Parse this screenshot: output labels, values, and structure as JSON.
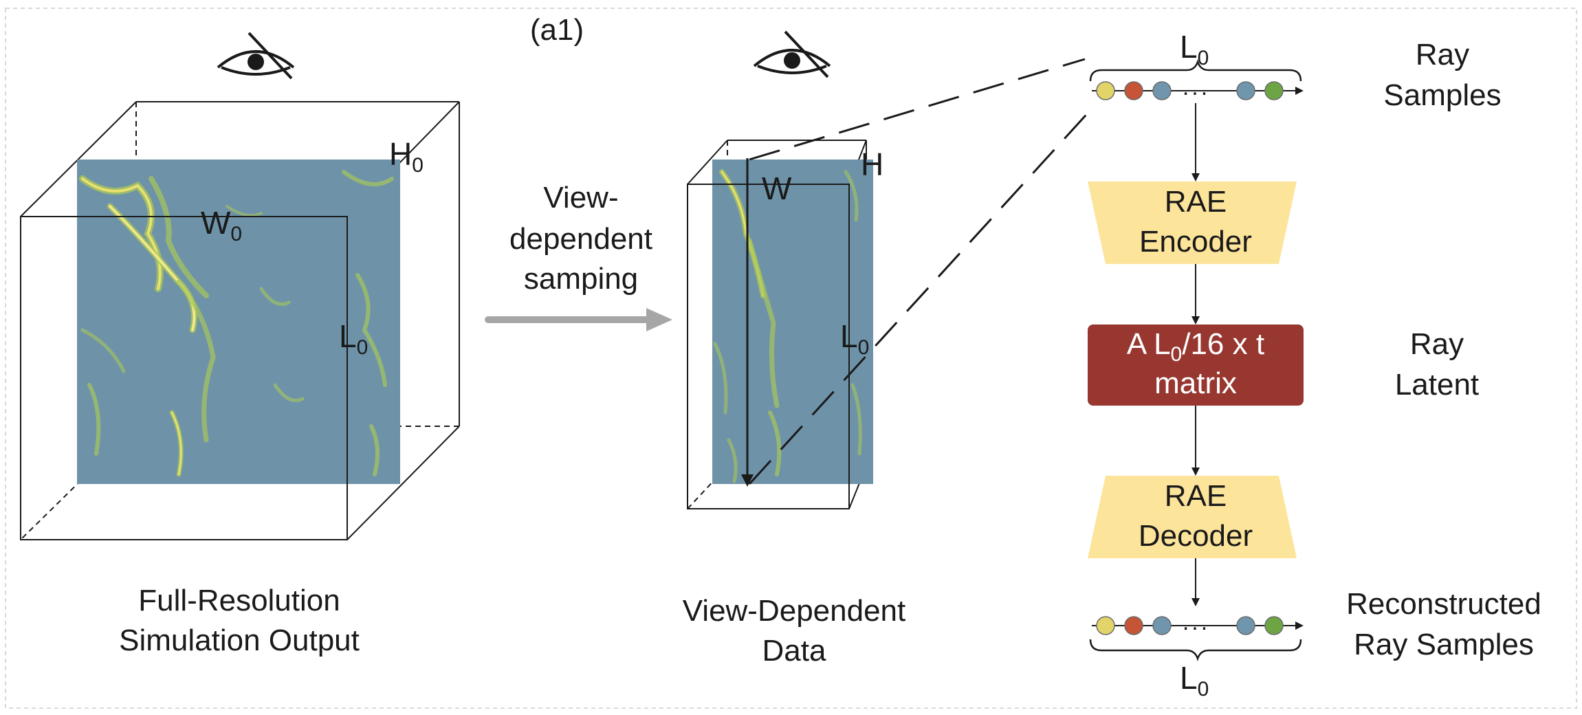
{
  "panel_label": "(a1)",
  "left_block": {
    "w_label": "W",
    "w_sub": "0",
    "h_label": "H",
    "h_sub": "0",
    "l_label": "L",
    "l_sub": "0",
    "caption_line1": "Full-Resolution",
    "caption_line2": "Simulation Output"
  },
  "arrow_label": {
    "line1": "View-",
    "line2": "dependent",
    "line3": "samping"
  },
  "middle_block": {
    "w_label": "W",
    "h_label": "H",
    "l_label": "L",
    "l_sub": "0",
    "caption_line1": "View-Dependent",
    "caption_line2": "Data"
  },
  "pipeline": {
    "top_l_label": "L",
    "top_l_sub": "0",
    "bottom_l_label": "L",
    "bottom_l_sub": "0",
    "ellipsis": "...",
    "encoder_line1": "RAE",
    "encoder_line2": "Encoder",
    "latent_prefix": "A L",
    "latent_sub": "0",
    "latent_suffix": "/16 x t",
    "latent_line2": "matrix",
    "decoder_line1": "RAE",
    "decoder_line2": "Decoder"
  },
  "side_labels": {
    "ray_samples_line1": "Ray",
    "ray_samples_line2": "Samples",
    "ray_latent_line1": "Ray",
    "ray_latent_line2": "Latent",
    "recon_line1": "Reconstructed",
    "recon_line2": "Ray Samples"
  },
  "colors": {
    "volume_blue": "#6e93a9",
    "filament_yellow": "#e8e070",
    "filament_green": "#a7c65a",
    "trapezoid_fill": "#fde49b",
    "latent_fill": "#973730",
    "arrow_gray": "#a6a6a6",
    "dot_yellow": "#e3d46a",
    "dot_orange": "#c65436",
    "dot_blue": "#6f96ad",
    "dot_green": "#6ea544"
  },
  "icons": [
    "eye-icon",
    "eye-icon"
  ]
}
